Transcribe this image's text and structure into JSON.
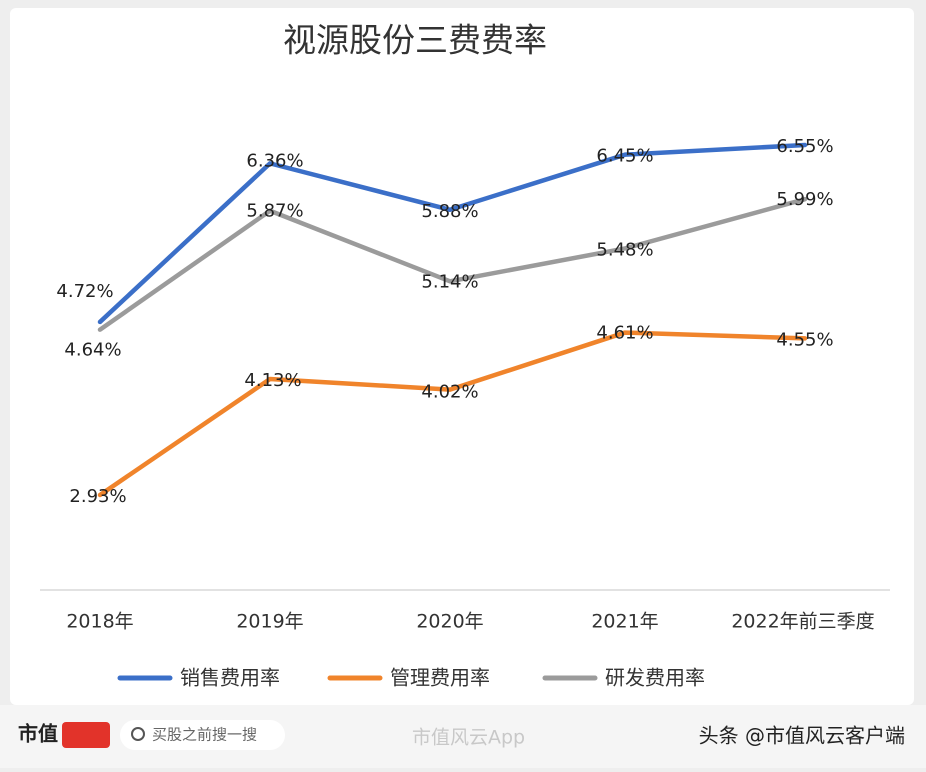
{
  "chart_data": {
    "type": "line",
    "title": "视源股份三费费率",
    "categories": [
      "2018年",
      "2019年",
      "2020年",
      "2021年",
      "2022年前三季度"
    ],
    "series": [
      {
        "name": "销售费用率",
        "color": "#3b6fc8",
        "values": [
          4.72,
          6.36,
          5.88,
          6.45,
          6.55
        ],
        "value_labels": [
          "4.72%",
          "6.36%",
          "5.88%",
          "6.45%",
          "6.55%"
        ]
      },
      {
        "name": "管理费用率",
        "color": "#f0842b",
        "values": [
          2.93,
          4.13,
          4.02,
          4.61,
          4.55
        ],
        "value_labels": [
          "2.93%",
          "4.13%",
          "4.02%",
          "4.61%",
          "4.55%"
        ]
      },
      {
        "name": "研发费用率",
        "color": "#9b9b9b",
        "values": [
          4.64,
          5.87,
          5.14,
          5.48,
          5.99
        ],
        "value_labels": [
          "4.64%",
          "5.87%",
          "5.14%",
          "5.48%",
          "5.99%"
        ]
      }
    ]
  },
  "footer": {
    "brand": "市值",
    "search": "买股之前搜一搜",
    "app": "市值风云App",
    "source": "头条 @市值风云客户端"
  }
}
